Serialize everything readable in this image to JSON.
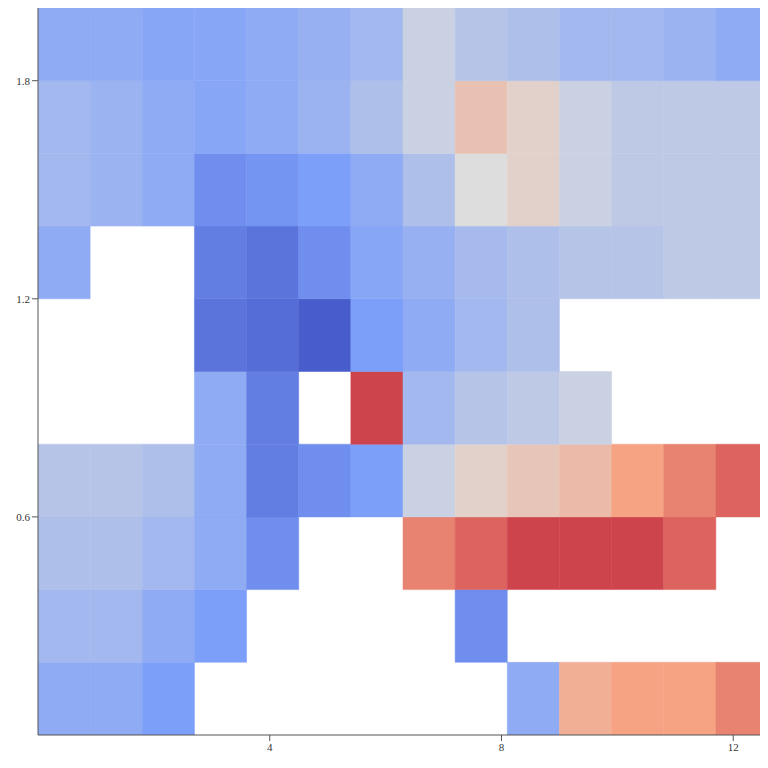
{
  "chart_data": {
    "type": "heatmap",
    "xlim": [
      0,
      12.6
    ],
    "ylim": [
      0,
      2.0
    ],
    "xticks": [
      4,
      8,
      12
    ],
    "yticks": [
      0.6,
      1.2,
      1.8
    ],
    "grid": false,
    "clim": [
      0,
      1
    ],
    "x_edges": [
      0,
      0.9,
      1.8,
      2.7,
      3.6,
      4.5,
      5.4,
      6.3,
      7.2,
      8.1,
      9.0,
      9.9,
      10.8,
      11.7,
      12.6
    ],
    "y_edges": [
      0,
      0.2,
      0.4,
      0.6,
      0.8,
      1.0,
      1.2,
      1.4,
      1.6,
      1.8,
      2.0
    ],
    "cells": [
      [
        0.3,
        0.3,
        0.25,
        null,
        null,
        null,
        null,
        null,
        null,
        0.3,
        0.7,
        0.75,
        0.75,
        0.8
      ],
      [
        0.35,
        0.35,
        0.3,
        0.25,
        null,
        null,
        null,
        null,
        0.2,
        null,
        null,
        null,
        null,
        null
      ],
      [
        0.38,
        0.38,
        0.35,
        0.3,
        0.2,
        null,
        null,
        0.8,
        0.85,
        0.9,
        0.9,
        0.9,
        0.85,
        null
      ],
      [
        0.4,
        0.4,
        0.38,
        0.3,
        0.15,
        0.2,
        0.25,
        0.45,
        0.55,
        0.6,
        0.65,
        0.75,
        0.8,
        0.85
      ],
      [
        null,
        null,
        null,
        0.3,
        0.15,
        null,
        0.9,
        0.35,
        0.4,
        0.42,
        0.45,
        null,
        null,
        null
      ],
      [
        null,
        null,
        null,
        0.12,
        0.1,
        0.05,
        0.25,
        0.3,
        0.35,
        0.38,
        null,
        null,
        null,
        null
      ],
      [
        0.3,
        null,
        null,
        0.15,
        0.12,
        0.2,
        0.28,
        0.32,
        0.36,
        0.38,
        0.4,
        0.4,
        0.42,
        0.42
      ],
      [
        0.35,
        0.33,
        0.3,
        0.2,
        0.22,
        0.25,
        0.3,
        0.38,
        0.5,
        0.55,
        0.45,
        0.42,
        0.42,
        0.42
      ],
      [
        0.35,
        0.33,
        0.3,
        0.28,
        0.3,
        0.33,
        0.38,
        0.45,
        0.62,
        0.55,
        0.45,
        0.42,
        0.42,
        0.42
      ],
      [
        0.3,
        0.3,
        0.28,
        0.28,
        0.3,
        0.32,
        0.35,
        0.45,
        0.4,
        0.38,
        0.35,
        0.35,
        0.33,
        0.3
      ]
    ]
  }
}
